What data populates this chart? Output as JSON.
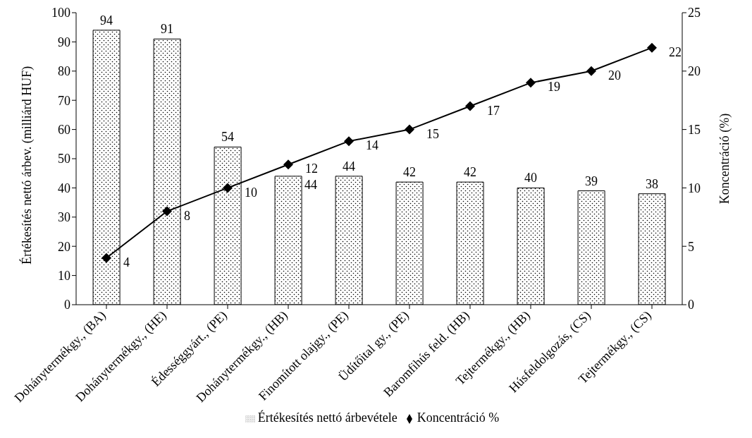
{
  "chart_data": {
    "type": "bar",
    "ylabel": "Értékesítés nettó árbev. (milliárd HUF)",
    "y2label": "Koncentráció (%)",
    "categories": [
      "Dohánytermékgy., (BA)",
      "Dohánytermékgy., (HE)",
      "Édességgyárt., (PE)",
      "Dohánytermékgy., (HB)",
      "Finomított olajgy., (PE)",
      "Üdítőital gy., (PE)",
      "Baromfihús feld. (HB)",
      "Tejtermékgy., (HB)",
      "Húsfeldolgozás, (CS)",
      "Tejtermékgy., (CS)"
    ],
    "series": [
      {
        "name": "Értékesítés nettó árbevétele",
        "color": "#000000",
        "values": [
          94,
          91,
          54,
          44,
          44,
          42,
          42,
          40,
          39,
          38
        ]
      },
      {
        "name": "Koncentráció %",
        "type": "line",
        "axis": "y2",
        "color": "#000000",
        "marker": "diamond",
        "values": [
          4,
          8,
          10,
          12,
          14,
          15,
          17,
          19,
          20,
          22
        ]
      }
    ],
    "ylim": [
      0,
      100
    ],
    "yticks": [
      0,
      10,
      20,
      30,
      40,
      50,
      60,
      70,
      80,
      90,
      100
    ],
    "y2lim": [
      0,
      25
    ],
    "y2ticks": [
      0,
      5,
      10,
      15,
      20,
      25
    ],
    "data_labels": true,
    "legend": "bottom"
  }
}
